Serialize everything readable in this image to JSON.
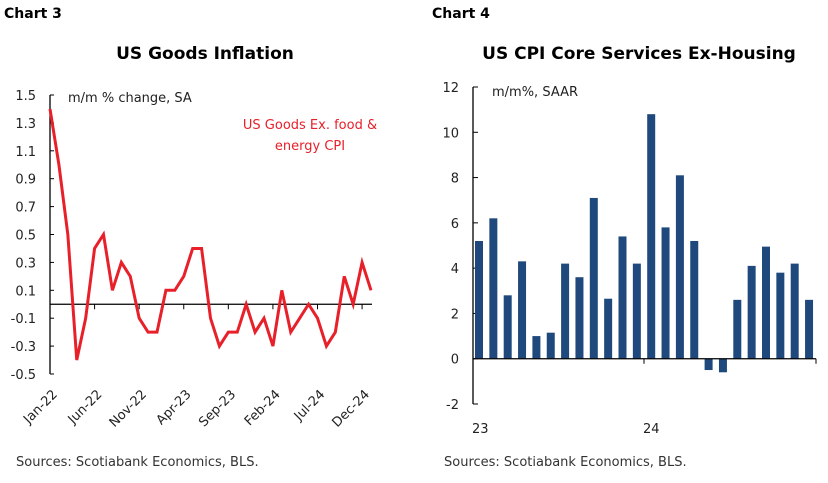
{
  "chart_data": [
    {
      "type": "line",
      "panel_label": "Chart 3",
      "title": "US Goods Inflation",
      "ylabel": "m/m % change, SA",
      "ylim": [
        -0.5,
        1.5
      ],
      "yticks": [
        "1.5",
        "1.3",
        "1.1",
        "0.9",
        "0.7",
        "0.5",
        "0.3",
        "0.1",
        "-0.1",
        "-0.3",
        "-0.5"
      ],
      "xtick_labels": [
        "Jan-22",
        "Jun-22",
        "Nov-22",
        "Apr-23",
        "Sep-23",
        "Feb-24",
        "Jul-24",
        "Dec-24"
      ],
      "grid": false,
      "series": [
        {
          "name": "US Goods Ex. food & energy CPI",
          "name_lines": [
            "US Goods Ex. food &",
            "energy CPI"
          ],
          "color": "#e8202a",
          "x_start": "Jan-22",
          "x_end": "Jan-25",
          "values": [
            1.4,
            1.0,
            0.5,
            -0.4,
            -0.1,
            0.4,
            0.5,
            0.1,
            0.3,
            0.2,
            -0.1,
            -0.2,
            -0.2,
            0.1,
            0.1,
            0.2,
            0.4,
            0.4,
            -0.1,
            -0.3,
            -0.2,
            -0.2,
            0.0,
            -0.2,
            -0.1,
            -0.3,
            0.1,
            -0.2,
            -0.1,
            0.0,
            -0.1,
            -0.3,
            -0.2,
            0.2,
            0.0,
            0.3,
            0.1
          ]
        }
      ],
      "source": "Sources: Scotiabank Economics, BLS."
    },
    {
      "type": "bar",
      "panel_label": "Chart 4",
      "title": "US CPI Core Services Ex-Housing",
      "ylabel": "m/m%, SAAR",
      "ylim": [
        -2,
        12
      ],
      "yticks": [
        "12",
        "10",
        "8",
        "6",
        "4",
        "2",
        "0",
        "-2"
      ],
      "xtick_labels": [
        "23",
        "24"
      ],
      "grid": false,
      "color": "#1f497d",
      "x_start": "Jan-23",
      "x_end": "Dec-24",
      "values": [
        5.2,
        6.2,
        2.8,
        4.3,
        1.0,
        1.15,
        4.2,
        3.6,
        7.1,
        2.65,
        5.4,
        4.2,
        10.8,
        5.8,
        8.1,
        5.2,
        -0.5,
        -0.6,
        2.6,
        4.1,
        4.95,
        3.8,
        4.2,
        2.6
      ],
      "source": "Sources: Scotiabank Economics, BLS."
    }
  ]
}
